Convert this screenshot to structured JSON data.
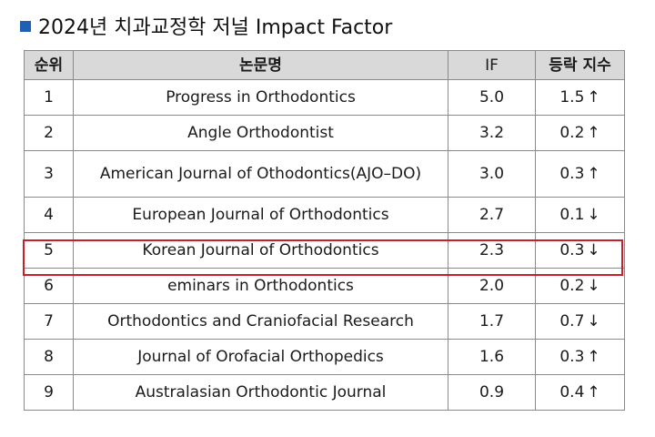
{
  "title": "2024년 치과교정학 저널 Impact Factor",
  "table": {
    "headers": [
      "순위",
      "논문명",
      "IF",
      "등락 지수"
    ],
    "rows": [
      {
        "rank": "1",
        "journal": "Progress in Orthodontics",
        "if": "5.0",
        "change": "1.5",
        "direction": "↑"
      },
      {
        "rank": "2",
        "journal": "Angle Orthodontist",
        "if": "3.2",
        "change": "0.2",
        "direction": "↑"
      },
      {
        "rank": "3",
        "journal": "American Journal of Othodontics(AJO–DO)",
        "if": "3.0",
        "change": "0.3",
        "direction": "↑"
      },
      {
        "rank": "4",
        "journal": "European Journal of Orthodontics",
        "if": "2.7",
        "change": "0.1",
        "direction": "↓"
      },
      {
        "rank": "5",
        "journal": "Korean Journal of Orthodontics",
        "if": "2.3",
        "change": "0.3",
        "direction": "↓"
      },
      {
        "rank": "6",
        "journal": "eminars in Orthodontics",
        "if": "2.0",
        "change": "0.2",
        "direction": "↓"
      },
      {
        "rank": "7",
        "journal": "Orthodontics and Craniofacial Research",
        "if": "1.7",
        "change": "0.7",
        "direction": "↓"
      },
      {
        "rank": "8",
        "journal": "Journal of Orofacial Orthopedics",
        "if": "1.6",
        "change": "0.3",
        "direction": "↑"
      },
      {
        "rank": "9",
        "journal": "Australasian Orthodontic Journal",
        "if": "0.9",
        "change": "0.4",
        "direction": "↑"
      }
    ]
  },
  "highlight_color": "#c8202a",
  "title_marker_color": "#1f5fb4",
  "header_bg": "#d9d9d9"
}
